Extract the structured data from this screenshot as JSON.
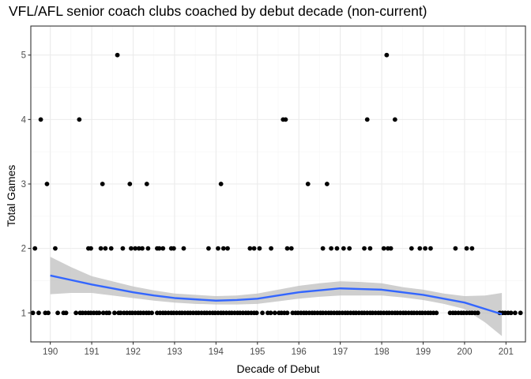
{
  "chart_data": {
    "type": "scatter",
    "title": "VFL/AFL senior coach clubs coached by debut decade (non-current)",
    "xlabel": "Decade of Debut",
    "ylabel": "Total Games",
    "xlim": [
      189.53,
      201.47
    ],
    "ylim": [
      0.55,
      5.45
    ],
    "x_ticks": [
      190,
      191,
      192,
      193,
      194,
      195,
      196,
      197,
      198,
      199,
      200,
      201
    ],
    "x_tick_labels": [
      "190",
      "191",
      "192",
      "193",
      "194",
      "195",
      "196",
      "197",
      "198",
      "199",
      "200",
      "201"
    ],
    "y_ticks": [
      1,
      2,
      3,
      4,
      5
    ],
    "y_tick_labels": [
      "1",
      "2",
      "3",
      "4",
      "5"
    ],
    "grid": true,
    "panel_border": true,
    "colors": {
      "points": "#000000",
      "smooth_line": "#3366FF",
      "confidence_band": "#bfbfbf",
      "grid_major": "#ebebeb",
      "grid_minor": "#f5f5f5",
      "panel_border": "#333333"
    },
    "points": [
      {
        "x": 189.63,
        "y": 2
      },
      {
        "x": 189.77,
        "y": 4
      },
      {
        "x": 189.92,
        "y": 3
      },
      {
        "x": 190.12,
        "y": 2
      },
      {
        "x": 190.7,
        "y": 4
      },
      {
        "x": 190.92,
        "y": 2
      },
      {
        "x": 190.98,
        "y": 2
      },
      {
        "x": 191.22,
        "y": 2
      },
      {
        "x": 191.26,
        "y": 3
      },
      {
        "x": 191.33,
        "y": 2
      },
      {
        "x": 191.47,
        "y": 2
      },
      {
        "x": 191.62,
        "y": 5
      },
      {
        "x": 191.75,
        "y": 2
      },
      {
        "x": 191.92,
        "y": 3
      },
      {
        "x": 191.95,
        "y": 2
      },
      {
        "x": 192.05,
        "y": 2
      },
      {
        "x": 192.14,
        "y": 2
      },
      {
        "x": 192.22,
        "y": 2
      },
      {
        "x": 192.33,
        "y": 3
      },
      {
        "x": 192.36,
        "y": 2
      },
      {
        "x": 192.58,
        "y": 2
      },
      {
        "x": 192.63,
        "y": 2
      },
      {
        "x": 192.72,
        "y": 2
      },
      {
        "x": 192.92,
        "y": 2
      },
      {
        "x": 192.98,
        "y": 2
      },
      {
        "x": 193.22,
        "y": 2
      },
      {
        "x": 193.82,
        "y": 2
      },
      {
        "x": 194.05,
        "y": 2
      },
      {
        "x": 194.12,
        "y": 3
      },
      {
        "x": 194.18,
        "y": 2
      },
      {
        "x": 194.28,
        "y": 2
      },
      {
        "x": 194.82,
        "y": 2
      },
      {
        "x": 194.92,
        "y": 2
      },
      {
        "x": 195.05,
        "y": 2
      },
      {
        "x": 195.33,
        "y": 2
      },
      {
        "x": 195.62,
        "y": 4
      },
      {
        "x": 195.68,
        "y": 4
      },
      {
        "x": 195.72,
        "y": 2
      },
      {
        "x": 195.82,
        "y": 2
      },
      {
        "x": 196.22,
        "y": 3
      },
      {
        "x": 196.58,
        "y": 2
      },
      {
        "x": 196.68,
        "y": 3
      },
      {
        "x": 196.78,
        "y": 2
      },
      {
        "x": 196.92,
        "y": 2
      },
      {
        "x": 197.08,
        "y": 2
      },
      {
        "x": 197.22,
        "y": 2
      },
      {
        "x": 197.58,
        "y": 2
      },
      {
        "x": 197.65,
        "y": 4
      },
      {
        "x": 197.72,
        "y": 2
      },
      {
        "x": 198.05,
        "y": 2
      },
      {
        "x": 198.12,
        "y": 5
      },
      {
        "x": 198.15,
        "y": 2
      },
      {
        "x": 198.22,
        "y": 2
      },
      {
        "x": 198.32,
        "y": 4
      },
      {
        "x": 198.72,
        "y": 2
      },
      {
        "x": 198.92,
        "y": 2
      },
      {
        "x": 199.05,
        "y": 2
      },
      {
        "x": 199.18,
        "y": 2
      },
      {
        "x": 199.78,
        "y": 2
      },
      {
        "x": 200.05,
        "y": 2
      },
      {
        "x": 200.18,
        "y": 2
      },
      {
        "x": 189.58,
        "y": 1
      },
      {
        "x": 189.72,
        "y": 1
      },
      {
        "x": 189.88,
        "y": 1
      },
      {
        "x": 189.95,
        "y": 1
      },
      {
        "x": 190.18,
        "y": 1
      },
      {
        "x": 190.32,
        "y": 1
      },
      {
        "x": 190.38,
        "y": 1
      },
      {
        "x": 190.62,
        "y": 1
      },
      {
        "x": 190.72,
        "y": 1
      },
      {
        "x": 190.78,
        "y": 1
      },
      {
        "x": 190.85,
        "y": 1
      },
      {
        "x": 190.92,
        "y": 1
      },
      {
        "x": 190.98,
        "y": 1
      },
      {
        "x": 191.05,
        "y": 1
      },
      {
        "x": 191.12,
        "y": 1
      },
      {
        "x": 191.18,
        "y": 1
      },
      {
        "x": 191.28,
        "y": 1
      },
      {
        "x": 191.36,
        "y": 1
      },
      {
        "x": 191.42,
        "y": 1
      },
      {
        "x": 191.55,
        "y": 1
      },
      {
        "x": 191.65,
        "y": 1
      },
      {
        "x": 191.7,
        "y": 1
      },
      {
        "x": 191.78,
        "y": 1
      },
      {
        "x": 191.85,
        "y": 1
      },
      {
        "x": 191.92,
        "y": 1
      },
      {
        "x": 191.98,
        "y": 1
      },
      {
        "x": 192.05,
        "y": 1
      },
      {
        "x": 192.12,
        "y": 1
      },
      {
        "x": 192.18,
        "y": 1
      },
      {
        "x": 192.25,
        "y": 1
      },
      {
        "x": 192.32,
        "y": 1
      },
      {
        "x": 192.38,
        "y": 1
      },
      {
        "x": 192.45,
        "y": 1
      },
      {
        "x": 192.58,
        "y": 1
      },
      {
        "x": 192.65,
        "y": 1
      },
      {
        "x": 192.72,
        "y": 1
      },
      {
        "x": 192.78,
        "y": 1
      },
      {
        "x": 192.85,
        "y": 1
      },
      {
        "x": 192.92,
        "y": 1
      },
      {
        "x": 192.98,
        "y": 1
      },
      {
        "x": 193.05,
        "y": 1
      },
      {
        "x": 193.12,
        "y": 1
      },
      {
        "x": 193.18,
        "y": 1
      },
      {
        "x": 193.25,
        "y": 1
      },
      {
        "x": 193.32,
        "y": 1
      },
      {
        "x": 193.38,
        "y": 1
      },
      {
        "x": 193.45,
        "y": 1
      },
      {
        "x": 193.52,
        "y": 1
      },
      {
        "x": 193.58,
        "y": 1
      },
      {
        "x": 193.65,
        "y": 1
      },
      {
        "x": 193.72,
        "y": 1
      },
      {
        "x": 193.78,
        "y": 1
      },
      {
        "x": 193.85,
        "y": 1
      },
      {
        "x": 193.92,
        "y": 1
      },
      {
        "x": 193.98,
        "y": 1
      },
      {
        "x": 194.05,
        "y": 1
      },
      {
        "x": 194.12,
        "y": 1
      },
      {
        "x": 194.18,
        "y": 1
      },
      {
        "x": 194.25,
        "y": 1
      },
      {
        "x": 194.32,
        "y": 1
      },
      {
        "x": 194.38,
        "y": 1
      },
      {
        "x": 194.45,
        "y": 1
      },
      {
        "x": 194.52,
        "y": 1
      },
      {
        "x": 194.58,
        "y": 1
      },
      {
        "x": 194.65,
        "y": 1
      },
      {
        "x": 194.72,
        "y": 1
      },
      {
        "x": 194.78,
        "y": 1
      },
      {
        "x": 194.85,
        "y": 1
      },
      {
        "x": 194.92,
        "y": 1
      },
      {
        "x": 194.98,
        "y": 1
      },
      {
        "x": 195.12,
        "y": 1
      },
      {
        "x": 195.25,
        "y": 1
      },
      {
        "x": 195.32,
        "y": 1
      },
      {
        "x": 195.42,
        "y": 1
      },
      {
        "x": 195.52,
        "y": 1
      },
      {
        "x": 195.58,
        "y": 1
      },
      {
        "x": 195.65,
        "y": 1
      },
      {
        "x": 195.72,
        "y": 1
      },
      {
        "x": 195.85,
        "y": 1
      },
      {
        "x": 195.92,
        "y": 1
      },
      {
        "x": 195.98,
        "y": 1
      },
      {
        "x": 196.05,
        "y": 1
      },
      {
        "x": 196.12,
        "y": 1
      },
      {
        "x": 196.18,
        "y": 1
      },
      {
        "x": 196.25,
        "y": 1
      },
      {
        "x": 196.32,
        "y": 1
      },
      {
        "x": 196.38,
        "y": 1
      },
      {
        "x": 196.45,
        "y": 1
      },
      {
        "x": 196.52,
        "y": 1
      },
      {
        "x": 196.58,
        "y": 1
      },
      {
        "x": 196.65,
        "y": 1
      },
      {
        "x": 196.72,
        "y": 1
      },
      {
        "x": 196.78,
        "y": 1
      },
      {
        "x": 196.85,
        "y": 1
      },
      {
        "x": 196.92,
        "y": 1
      },
      {
        "x": 196.98,
        "y": 1
      },
      {
        "x": 197.05,
        "y": 1
      },
      {
        "x": 197.12,
        "y": 1
      },
      {
        "x": 197.18,
        "y": 1
      },
      {
        "x": 197.25,
        "y": 1
      },
      {
        "x": 197.32,
        "y": 1
      },
      {
        "x": 197.38,
        "y": 1
      },
      {
        "x": 197.45,
        "y": 1
      },
      {
        "x": 197.52,
        "y": 1
      },
      {
        "x": 197.58,
        "y": 1
      },
      {
        "x": 197.65,
        "y": 1
      },
      {
        "x": 197.72,
        "y": 1
      },
      {
        "x": 197.78,
        "y": 1
      },
      {
        "x": 197.85,
        "y": 1
      },
      {
        "x": 197.92,
        "y": 1
      },
      {
        "x": 197.98,
        "y": 1
      },
      {
        "x": 198.05,
        "y": 1
      },
      {
        "x": 198.12,
        "y": 1
      },
      {
        "x": 198.18,
        "y": 1
      },
      {
        "x": 198.25,
        "y": 1
      },
      {
        "x": 198.32,
        "y": 1
      },
      {
        "x": 198.38,
        "y": 1
      },
      {
        "x": 198.45,
        "y": 1
      },
      {
        "x": 198.52,
        "y": 1
      },
      {
        "x": 198.58,
        "y": 1
      },
      {
        "x": 198.65,
        "y": 1
      },
      {
        "x": 198.72,
        "y": 1
      },
      {
        "x": 198.78,
        "y": 1
      },
      {
        "x": 198.85,
        "y": 1
      },
      {
        "x": 198.92,
        "y": 1
      },
      {
        "x": 198.98,
        "y": 1
      },
      {
        "x": 199.05,
        "y": 1
      },
      {
        "x": 199.12,
        "y": 1
      },
      {
        "x": 199.18,
        "y": 1
      },
      {
        "x": 199.25,
        "y": 1
      },
      {
        "x": 199.32,
        "y": 1
      },
      {
        "x": 199.65,
        "y": 1
      },
      {
        "x": 199.72,
        "y": 1
      },
      {
        "x": 199.78,
        "y": 1
      },
      {
        "x": 199.85,
        "y": 1
      },
      {
        "x": 199.92,
        "y": 1
      },
      {
        "x": 199.98,
        "y": 1
      },
      {
        "x": 200.05,
        "y": 1
      },
      {
        "x": 200.12,
        "y": 1
      },
      {
        "x": 200.18,
        "y": 1
      },
      {
        "x": 200.25,
        "y": 1
      },
      {
        "x": 200.32,
        "y": 1
      },
      {
        "x": 200.85,
        "y": 1
      },
      {
        "x": 200.92,
        "y": 1
      },
      {
        "x": 200.98,
        "y": 1
      },
      {
        "x": 201.05,
        "y": 1
      },
      {
        "x": 201.12,
        "y": 1
      },
      {
        "x": 201.22,
        "y": 1
      },
      {
        "x": 201.35,
        "y": 1
      }
    ],
    "smooth": {
      "x": [
        190.0,
        190.5,
        191.0,
        191.5,
        192.0,
        192.5,
        193.0,
        193.5,
        194.0,
        194.5,
        195.0,
        195.5,
        196.0,
        196.5,
        197.0,
        197.5,
        198.0,
        198.5,
        199.0,
        199.5,
        200.0,
        200.5,
        200.9
      ],
      "y": [
        1.58,
        1.51,
        1.44,
        1.38,
        1.32,
        1.27,
        1.23,
        1.21,
        1.19,
        1.2,
        1.22,
        1.27,
        1.32,
        1.35,
        1.38,
        1.37,
        1.36,
        1.32,
        1.28,
        1.22,
        1.16,
        1.06,
        0.98
      ],
      "lower": [
        1.29,
        1.31,
        1.31,
        1.27,
        1.23,
        1.19,
        1.16,
        1.14,
        1.13,
        1.13,
        1.14,
        1.18,
        1.22,
        1.25,
        1.27,
        1.27,
        1.27,
        1.24,
        1.2,
        1.14,
        1.06,
        0.85,
        0.64
      ],
      "upper": [
        1.87,
        1.71,
        1.57,
        1.49,
        1.41,
        1.35,
        1.3,
        1.28,
        1.26,
        1.27,
        1.3,
        1.36,
        1.42,
        1.46,
        1.49,
        1.48,
        1.46,
        1.4,
        1.36,
        1.3,
        1.26,
        1.27,
        1.31
      ]
    }
  }
}
